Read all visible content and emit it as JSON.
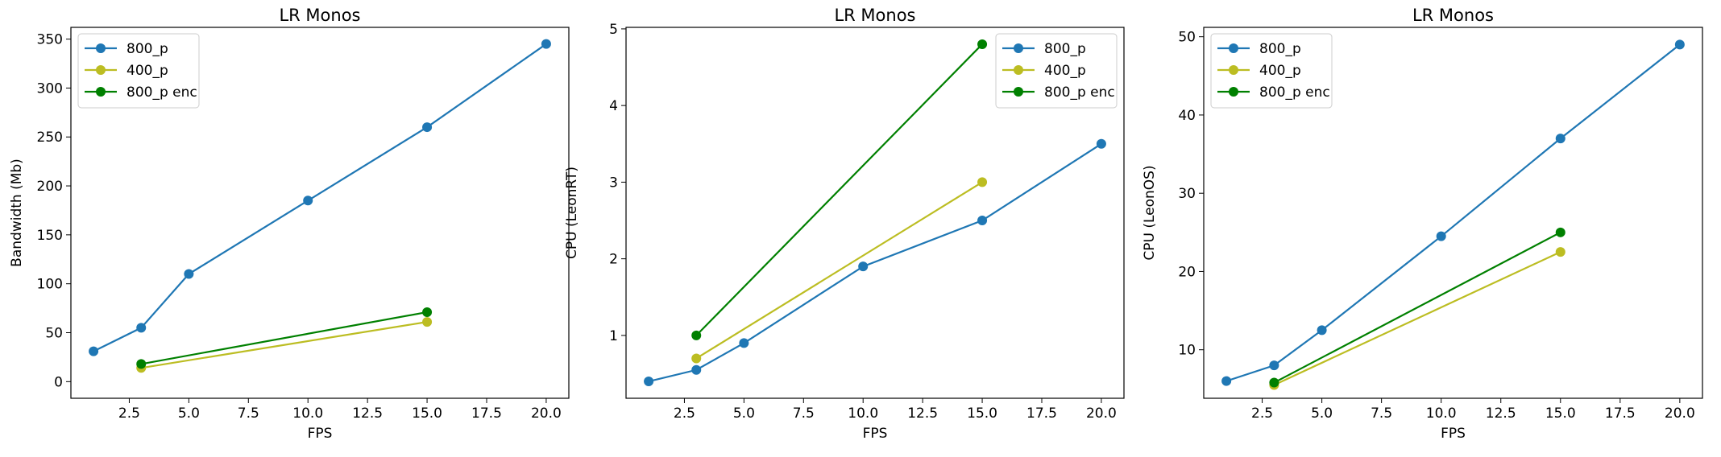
{
  "chart_data": [
    {
      "type": "line",
      "title": "LR Monos",
      "xlabel": "FPS",
      "ylabel": "Bandwidth (Mb)",
      "xlim": [
        0.05,
        20.95
      ],
      "ylim": [
        -17,
        362
      ],
      "xticks": [
        "2.5",
        "5.0",
        "7.5",
        "10.0",
        "12.5",
        "15.0",
        "17.5",
        "20.0"
      ],
      "yticks": [
        "0",
        "50",
        "100",
        "150",
        "200",
        "250",
        "300",
        "350"
      ],
      "legend": "top-left",
      "series": [
        {
          "name": "800_p",
          "color": "#1f77b4",
          "x": [
            1,
            3,
            5,
            10,
            15,
            20
          ],
          "y": [
            31,
            55,
            110,
            185,
            260,
            345
          ]
        },
        {
          "name": "400_p",
          "color": "#bcbd22",
          "x": [
            3,
            15
          ],
          "y": [
            14,
            61
          ]
        },
        {
          "name": "800_p enc",
          "color": "#008000",
          "x": [
            3,
            15
          ],
          "y": [
            18,
            71
          ]
        }
      ]
    },
    {
      "type": "line",
      "title": "LR Monos",
      "xlabel": "FPS",
      "ylabel": "CPU (LeonRT)",
      "xlim": [
        0.05,
        20.95
      ],
      "ylim": [
        0.18,
        5.02
      ],
      "xticks": [
        "2.5",
        "5.0",
        "7.5",
        "10.0",
        "12.5",
        "15.0",
        "17.5",
        "20.0"
      ],
      "yticks": [
        "1",
        "2",
        "3",
        "4",
        "5"
      ],
      "legend": "top-right",
      "series": [
        {
          "name": "800_p",
          "color": "#1f77b4",
          "x": [
            1,
            3,
            5,
            10,
            15,
            20
          ],
          "y": [
            0.4,
            0.55,
            0.9,
            1.9,
            2.5,
            3.5
          ]
        },
        {
          "name": "400_p",
          "color": "#bcbd22",
          "x": [
            3,
            15
          ],
          "y": [
            0.7,
            3.0
          ]
        },
        {
          "name": "800_p enc",
          "color": "#008000",
          "x": [
            3,
            15
          ],
          "y": [
            1.0,
            4.8
          ]
        }
      ]
    },
    {
      "type": "line",
      "title": "LR Monos",
      "xlabel": "FPS",
      "ylabel": "CPU (LeonOS)",
      "xlim": [
        0.05,
        20.95
      ],
      "ylim": [
        3.8,
        51.2
      ],
      "xticks": [
        "2.5",
        "5.0",
        "7.5",
        "10.0",
        "12.5",
        "15.0",
        "17.5",
        "20.0"
      ],
      "yticks": [
        "10",
        "20",
        "30",
        "40",
        "50"
      ],
      "legend": "top-left",
      "series": [
        {
          "name": "800_p",
          "color": "#1f77b4",
          "x": [
            1,
            3,
            5,
            10,
            15,
            20
          ],
          "y": [
            6,
            8,
            12.5,
            24.5,
            37,
            49
          ]
        },
        {
          "name": "400_p",
          "color": "#bcbd22",
          "x": [
            3,
            15
          ],
          "y": [
            5.5,
            22.5
          ]
        },
        {
          "name": "800_p enc",
          "color": "#008000",
          "x": [
            3,
            15
          ],
          "y": [
            5.8,
            25
          ]
        }
      ]
    }
  ]
}
